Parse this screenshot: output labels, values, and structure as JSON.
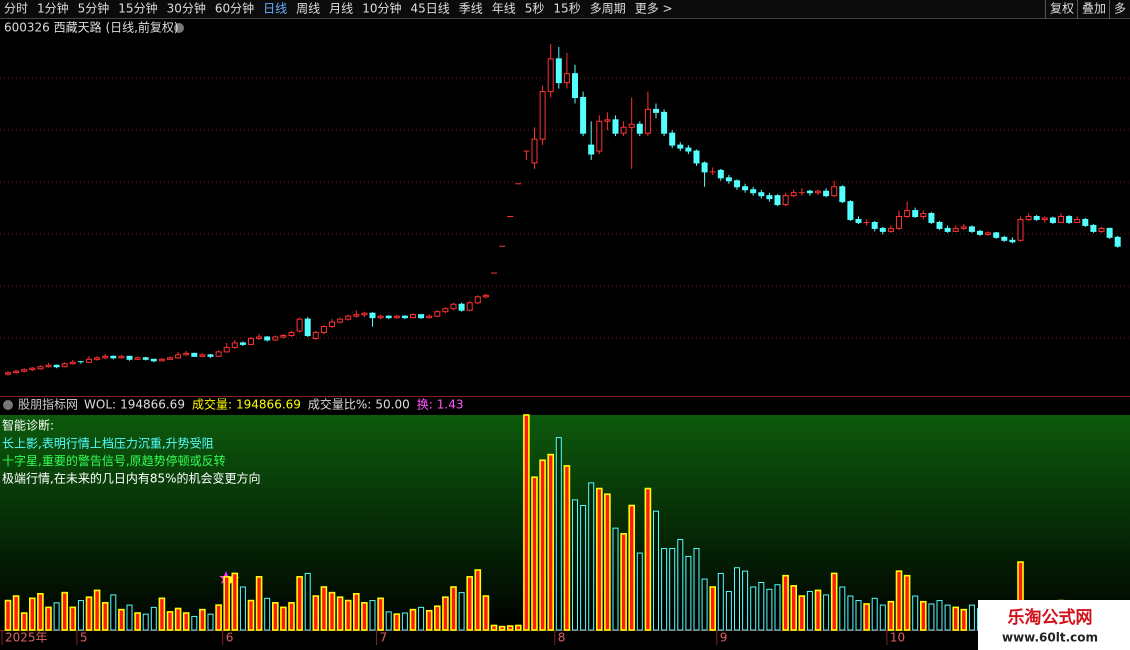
{
  "toolbar": {
    "periods": [
      "分时",
      "1分钟",
      "5分钟",
      "15分钟",
      "30分钟",
      "60分钟",
      "日线",
      "周线",
      "月线",
      "10分钟",
      "45日线",
      "季线",
      "年线",
      "5秒",
      "15秒",
      "多周期",
      "更多 >"
    ],
    "selected": 6,
    "right": [
      "复权",
      "叠加",
      "多"
    ]
  },
  "chart_data": {
    "type": "candlestick",
    "title": "600326 西藏天路 (日线,前复权)",
    "categories": [
      "2025年",
      null,
      null,
      null,
      null,
      null,
      null,
      null,
      null,
      "5",
      null,
      null,
      null,
      null,
      null,
      null,
      null,
      null,
      null,
      null,
      null,
      null,
      null,
      null,
      null,
      null,
      null,
      "6",
      null,
      null,
      null,
      null,
      null,
      null,
      null,
      null,
      null,
      null,
      null,
      null,
      null,
      null,
      null,
      null,
      null,
      null,
      "7",
      null,
      null,
      null,
      null,
      null,
      null,
      null,
      null,
      null,
      null,
      null,
      null,
      null,
      null,
      null,
      null,
      null,
      null,
      null,
      null,
      null,
      "8",
      null,
      null,
      null,
      null,
      null,
      null,
      null,
      null,
      null,
      null,
      null,
      null,
      null,
      null,
      null,
      null,
      null,
      null,
      null,
      "9",
      null,
      null,
      null,
      null,
      null,
      null,
      null,
      null,
      null,
      null,
      null,
      null,
      null,
      null,
      null,
      null,
      null,
      null,
      null,
      null,
      "10",
      null,
      null,
      null,
      null,
      null,
      null,
      null,
      null,
      null,
      null,
      null,
      null,
      null,
      null,
      null,
      null,
      null,
      null,
      null,
      null,
      null,
      null,
      null,
      null,
      null,
      null,
      null,
      null
    ],
    "candles": [
      [
        4.7,
        4.8,
        4.65,
        4.75
      ],
      [
        4.75,
        4.85,
        4.72,
        4.8
      ],
      [
        4.8,
        4.9,
        4.76,
        4.85
      ],
      [
        4.85,
        4.95,
        4.8,
        4.9
      ],
      [
        4.88,
        5.0,
        4.85,
        4.95
      ],
      [
        4.95,
        5.08,
        4.92,
        5.0
      ],
      [
        5.0,
        5.02,
        4.9,
        4.95
      ],
      [
        4.95,
        5.1,
        4.93,
        5.05
      ],
      [
        5.05,
        5.18,
        5.02,
        5.1
      ],
      [
        5.12,
        5.15,
        5.05,
        5.1
      ],
      [
        5.1,
        5.3,
        5.08,
        5.2
      ],
      [
        5.2,
        5.3,
        5.15,
        5.25
      ],
      [
        5.25,
        5.38,
        5.2,
        5.3
      ],
      [
        5.3,
        5.33,
        5.2,
        5.25
      ],
      [
        5.25,
        5.35,
        5.22,
        5.3
      ],
      [
        5.3,
        5.32,
        5.15,
        5.2
      ],
      [
        5.2,
        5.3,
        5.18,
        5.25
      ],
      [
        5.25,
        5.28,
        5.16,
        5.2
      ],
      [
        5.2,
        5.22,
        5.1,
        5.15
      ],
      [
        5.15,
        5.25,
        5.12,
        5.2
      ],
      [
        5.2,
        5.3,
        5.18,
        5.25
      ],
      [
        5.25,
        5.45,
        5.22,
        5.35
      ],
      [
        5.35,
        5.48,
        5.32,
        5.4
      ],
      [
        5.4,
        5.42,
        5.28,
        5.3
      ],
      [
        5.3,
        5.4,
        5.27,
        5.35
      ],
      [
        5.35,
        5.38,
        5.25,
        5.3
      ],
      [
        5.3,
        5.5,
        5.28,
        5.45
      ],
      [
        5.45,
        5.75,
        5.42,
        5.6
      ],
      [
        5.6,
        5.85,
        5.55,
        5.75
      ],
      [
        5.75,
        5.8,
        5.65,
        5.7
      ],
      [
        5.7,
        5.95,
        5.68,
        5.9
      ],
      [
        5.9,
        6.05,
        5.85,
        5.95
      ],
      [
        5.95,
        5.98,
        5.8,
        5.85
      ],
      [
        5.85,
        6.0,
        5.82,
        5.95
      ],
      [
        5.95,
        6.05,
        5.9,
        6.0
      ],
      [
        6.0,
        6.15,
        5.95,
        6.1
      ],
      [
        6.15,
        6.6,
        6.1,
        6.55
      ],
      [
        6.55,
        6.62,
        5.95,
        6.0
      ],
      [
        5.9,
        6.15,
        5.85,
        6.1
      ],
      [
        6.1,
        6.35,
        6.05,
        6.3
      ],
      [
        6.3,
        6.55,
        6.25,
        6.45
      ],
      [
        6.45,
        6.6,
        6.4,
        6.55
      ],
      [
        6.55,
        6.7,
        6.5,
        6.65
      ],
      [
        6.65,
        6.85,
        6.6,
        6.7
      ],
      [
        6.7,
        6.8,
        6.62,
        6.75
      ],
      [
        6.75,
        6.78,
        6.3,
        6.6
      ],
      [
        6.6,
        6.7,
        6.55,
        6.65
      ],
      [
        6.65,
        6.68,
        6.55,
        6.6
      ],
      [
        6.6,
        6.7,
        6.56,
        6.65
      ],
      [
        6.65,
        6.68,
        6.55,
        6.6
      ],
      [
        6.6,
        6.75,
        6.58,
        6.7
      ],
      [
        6.7,
        6.72,
        6.56,
        6.6
      ],
      [
        6.6,
        6.7,
        6.57,
        6.65
      ],
      [
        6.65,
        6.85,
        6.62,
        6.8
      ],
      [
        6.8,
        6.95,
        6.75,
        6.9
      ],
      [
        6.9,
        7.1,
        6.85,
        7.05
      ],
      [
        7.05,
        7.1,
        6.8,
        6.85
      ],
      [
        6.85,
        7.15,
        6.82,
        7.1
      ],
      [
        7.1,
        7.35,
        7.05,
        7.3
      ],
      [
        7.3,
        7.4,
        7.25,
        7.35
      ],
      [
        8.1,
        8.1,
        8.1,
        8.1
      ],
      [
        9.0,
        9.0,
        9.0,
        9.0
      ],
      [
        10.0,
        10.0,
        10.0,
        10.0
      ],
      [
        11.1,
        11.1,
        11.1,
        11.1
      ],
      [
        12.2,
        12.2,
        11.9,
        12.2
      ],
      [
        11.8,
        13.0,
        11.6,
        12.6
      ],
      [
        12.6,
        14.4,
        12.4,
        14.2
      ],
      [
        14.2,
        15.8,
        14.0,
        15.3
      ],
      [
        15.3,
        15.7,
        14.3,
        14.5
      ],
      [
        14.5,
        15.5,
        14.3,
        14.8
      ],
      [
        14.8,
        15.1,
        13.8,
        14.0
      ],
      [
        14.0,
        14.2,
        12.7,
        12.8
      ],
      [
        12.4,
        13.2,
        11.9,
        12.1
      ],
      [
        12.2,
        13.4,
        12.1,
        13.2
      ],
      [
        13.2,
        13.5,
        12.9,
        13.25
      ],
      [
        13.25,
        13.4,
        12.7,
        12.8
      ],
      [
        12.8,
        13.2,
        12.7,
        13.0
      ],
      [
        13.0,
        14.0,
        11.6,
        13.1
      ],
      [
        13.1,
        13.2,
        12.7,
        12.8
      ],
      [
        12.8,
        14.2,
        12.7,
        13.6
      ],
      [
        13.6,
        13.8,
        13.3,
        13.5
      ],
      [
        13.5,
        13.6,
        12.7,
        12.8
      ],
      [
        12.8,
        12.9,
        12.3,
        12.4
      ],
      [
        12.4,
        12.5,
        12.2,
        12.3
      ],
      [
        12.3,
        12.4,
        12.1,
        12.2
      ],
      [
        12.2,
        12.25,
        11.7,
        11.8
      ],
      [
        11.8,
        11.85,
        11.0,
        11.5
      ],
      [
        11.5,
        11.65,
        11.4,
        11.5
      ],
      [
        11.55,
        11.6,
        11.2,
        11.3
      ],
      [
        11.3,
        11.4,
        11.1,
        11.2
      ],
      [
        11.2,
        11.25,
        10.9,
        11.0
      ],
      [
        11.0,
        11.1,
        10.8,
        10.9
      ],
      [
        10.9,
        11.0,
        10.7,
        10.8
      ],
      [
        10.8,
        10.9,
        10.6,
        10.7
      ],
      [
        10.7,
        10.8,
        10.5,
        10.6
      ],
      [
        10.7,
        10.75,
        10.35,
        10.4
      ],
      [
        10.4,
        10.8,
        10.35,
        10.7
      ],
      [
        10.7,
        10.9,
        10.65,
        10.8
      ],
      [
        10.8,
        10.95,
        10.7,
        10.8
      ],
      [
        10.85,
        10.9,
        10.7,
        10.8
      ],
      [
        10.8,
        10.9,
        10.72,
        10.85
      ],
      [
        10.85,
        10.95,
        10.65,
        10.7
      ],
      [
        10.7,
        11.2,
        10.65,
        11.0
      ],
      [
        11.0,
        11.05,
        10.45,
        10.5
      ],
      [
        10.5,
        10.55,
        9.85,
        9.9
      ],
      [
        9.9,
        10.0,
        9.75,
        9.8
      ],
      [
        9.8,
        9.9,
        9.7,
        9.8
      ],
      [
        9.8,
        9.85,
        9.5,
        9.6
      ],
      [
        9.6,
        9.65,
        9.4,
        9.5
      ],
      [
        9.5,
        9.7,
        9.45,
        9.6
      ],
      [
        9.6,
        10.2,
        9.55,
        10.0
      ],
      [
        10.0,
        10.5,
        9.95,
        10.2
      ],
      [
        10.2,
        10.3,
        9.95,
        10.0
      ],
      [
        10.0,
        10.2,
        9.9,
        10.1
      ],
      [
        10.1,
        10.15,
        9.75,
        9.8
      ],
      [
        9.8,
        9.85,
        9.55,
        9.6
      ],
      [
        9.6,
        9.7,
        9.45,
        9.5
      ],
      [
        9.5,
        9.7,
        9.48,
        9.6
      ],
      [
        9.6,
        9.75,
        9.55,
        9.65
      ],
      [
        9.65,
        9.7,
        9.45,
        9.5
      ],
      [
        9.5,
        9.55,
        9.35,
        9.4
      ],
      [
        9.4,
        9.5,
        9.35,
        9.45
      ],
      [
        9.45,
        9.48,
        9.25,
        9.3
      ],
      [
        9.3,
        9.35,
        9.15,
        9.2
      ],
      [
        9.2,
        9.3,
        9.1,
        9.15
      ],
      [
        9.2,
        10.0,
        9.15,
        9.9
      ],
      [
        9.9,
        10.1,
        9.85,
        10.0
      ],
      [
        10.0,
        10.05,
        9.85,
        9.9
      ],
      [
        9.9,
        10.0,
        9.8,
        9.95
      ],
      [
        9.95,
        10.0,
        9.75,
        9.8
      ],
      [
        9.8,
        10.1,
        9.78,
        10.0
      ],
      [
        10.0,
        10.05,
        9.75,
        9.8
      ],
      [
        9.8,
        10.0,
        9.78,
        9.9
      ],
      [
        9.9,
        9.95,
        9.65,
        9.7
      ],
      [
        9.7,
        9.75,
        9.45,
        9.5
      ],
      [
        9.5,
        9.65,
        9.45,
        9.6
      ],
      [
        9.6,
        9.62,
        9.25,
        9.3
      ],
      [
        9.3,
        9.35,
        8.95,
        9.0
      ]
    ],
    "ylim": [
      4.0,
      16.0
    ],
    "up_color": "#ff3232",
    "down_color": "#54ffff",
    "volume": {
      "title": "股朋指标网",
      "indicators": [
        {
          "name": "WOL:",
          "value": "194866.69",
          "color": "#dddddd"
        },
        {
          "name": "成交量:",
          "value": "194866.69",
          "color": "#ffff00"
        },
        {
          "name": "成交量比%:",
          "value": "50.00",
          "color": "#dddddd"
        },
        {
          "name": "换:",
          "value": "1.43",
          "color": "#ff55ff"
        }
      ],
      "values": [
        260000,
        300000,
        150000,
        280000,
        320000,
        200000,
        240000,
        330000,
        200000,
        260000,
        290000,
        350000,
        240000,
        310000,
        180000,
        220000,
        150000,
        140000,
        200000,
        280000,
        160000,
        190000,
        150000,
        120000,
        180000,
        140000,
        220000,
        470000,
        500000,
        380000,
        260000,
        470000,
        280000,
        240000,
        200000,
        240000,
        470000,
        500000,
        300000,
        380000,
        330000,
        290000,
        260000,
        320000,
        240000,
        260000,
        280000,
        160000,
        140000,
        150000,
        180000,
        200000,
        170000,
        210000,
        290000,
        380000,
        330000,
        470000,
        530000,
        300000,
        40000,
        30000,
        35000,
        40000,
        1900000,
        1350000,
        1500000,
        1550000,
        1700000,
        1450000,
        1150000,
        1100000,
        1300000,
        1250000,
        1200000,
        900000,
        850000,
        1100000,
        680000,
        1250000,
        1050000,
        720000,
        720000,
        800000,
        650000,
        720000,
        450000,
        380000,
        500000,
        340000,
        550000,
        520000,
        380000,
        420000,
        360000,
        400000,
        480000,
        390000,
        300000,
        340000,
        350000,
        310000,
        500000,
        380000,
        300000,
        260000,
        230000,
        280000,
        220000,
        250000,
        520000,
        480000,
        300000,
        250000,
        230000,
        260000,
        220000,
        200000,
        180000,
        220000,
        190000,
        160000,
        150000,
        140000,
        160000,
        600000,
        250000,
        180000,
        170000,
        200000,
        260000,
        180000,
        160000,
        200000,
        170000,
        150000,
        180000,
        194866.69
      ],
      "ylim": [
        0,
        1900000
      ],
      "up_fill": "#ff1a1a",
      "up_stroke": "#ffff00",
      "down_stroke": "#54ffff"
    },
    "diagnosis": {
      "title": "智能诊断:",
      "lines": [
        {
          "text": "长上影,表明行情上档压力沉重,升势受阻",
          "color": "#54ffff"
        },
        {
          "text": "十字星,重要的警告信号,原趋势停顿或反转",
          "color": "#33ff55"
        },
        {
          "text": "极端行情,在未来的几日内有85%的机会变更方向",
          "color": "#ffffff"
        }
      ]
    }
  },
  "watermark": {
    "name": "乐淘公式网",
    "url": "www.60lt.com"
  }
}
